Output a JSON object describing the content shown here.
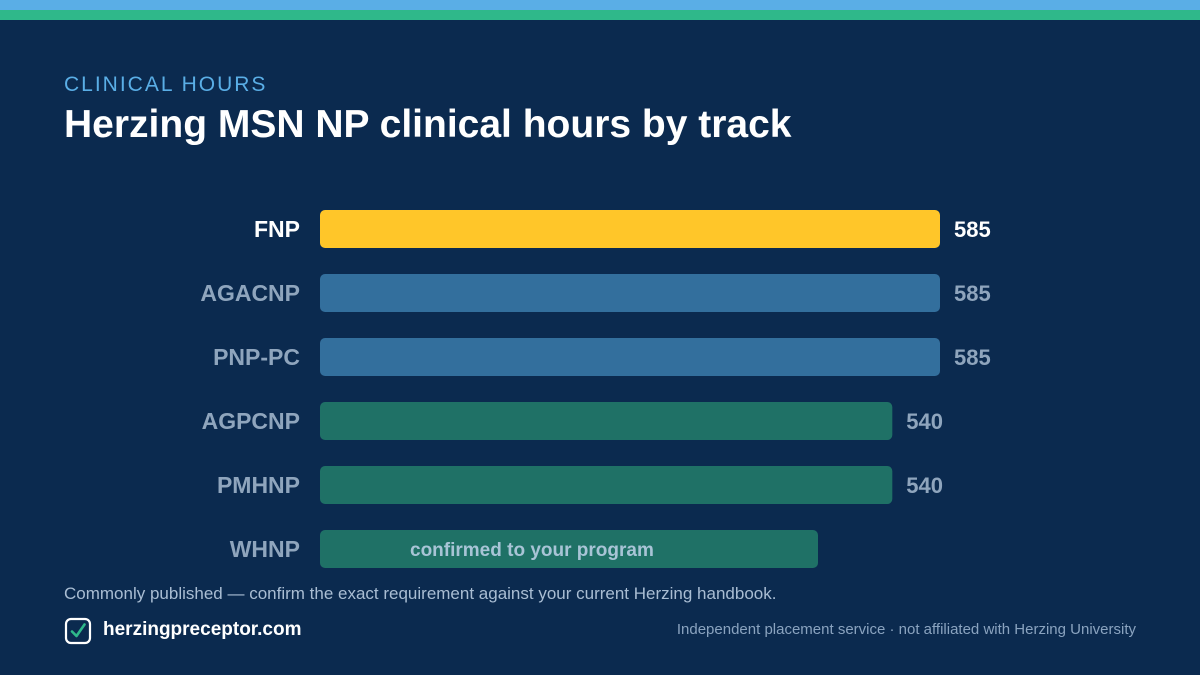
{
  "header": {
    "eyebrow": "CLINICAL HOURS",
    "title": "Herzing MSN NP clinical hours by track"
  },
  "chart_data": {
    "type": "bar",
    "orientation": "horizontal",
    "categories": [
      "FNP",
      "AGACNP",
      "PNP-PC",
      "AGPCNP",
      "PMHNP",
      "WHNP"
    ],
    "values": [
      585,
      585,
      585,
      540,
      540,
      null
    ],
    "value_labels": [
      "585",
      "585",
      "585",
      "540",
      "540",
      ""
    ],
    "bar_texts": [
      "",
      "",
      "",
      "",
      "",
      "confirmed to your program"
    ],
    "colors": [
      "#ffc629",
      "#336f9d",
      "#336f9d",
      "#1f7166",
      "#1f7166",
      "#1f7166"
    ],
    "highlight_index": 0,
    "xlim": [
      0,
      585
    ],
    "title": "Herzing MSN NP clinical hours by track",
    "xlabel": "",
    "ylabel": "",
    "grid": false
  },
  "footer": {
    "note": "Commonly published — confirm the exact requirement against your current Herzing handbook.",
    "brand": "herzingpreceptor.com",
    "disclaimer": "Independent placement service · not affiliated with Herzing University",
    "logo_icon": "checkbox-icon"
  }
}
